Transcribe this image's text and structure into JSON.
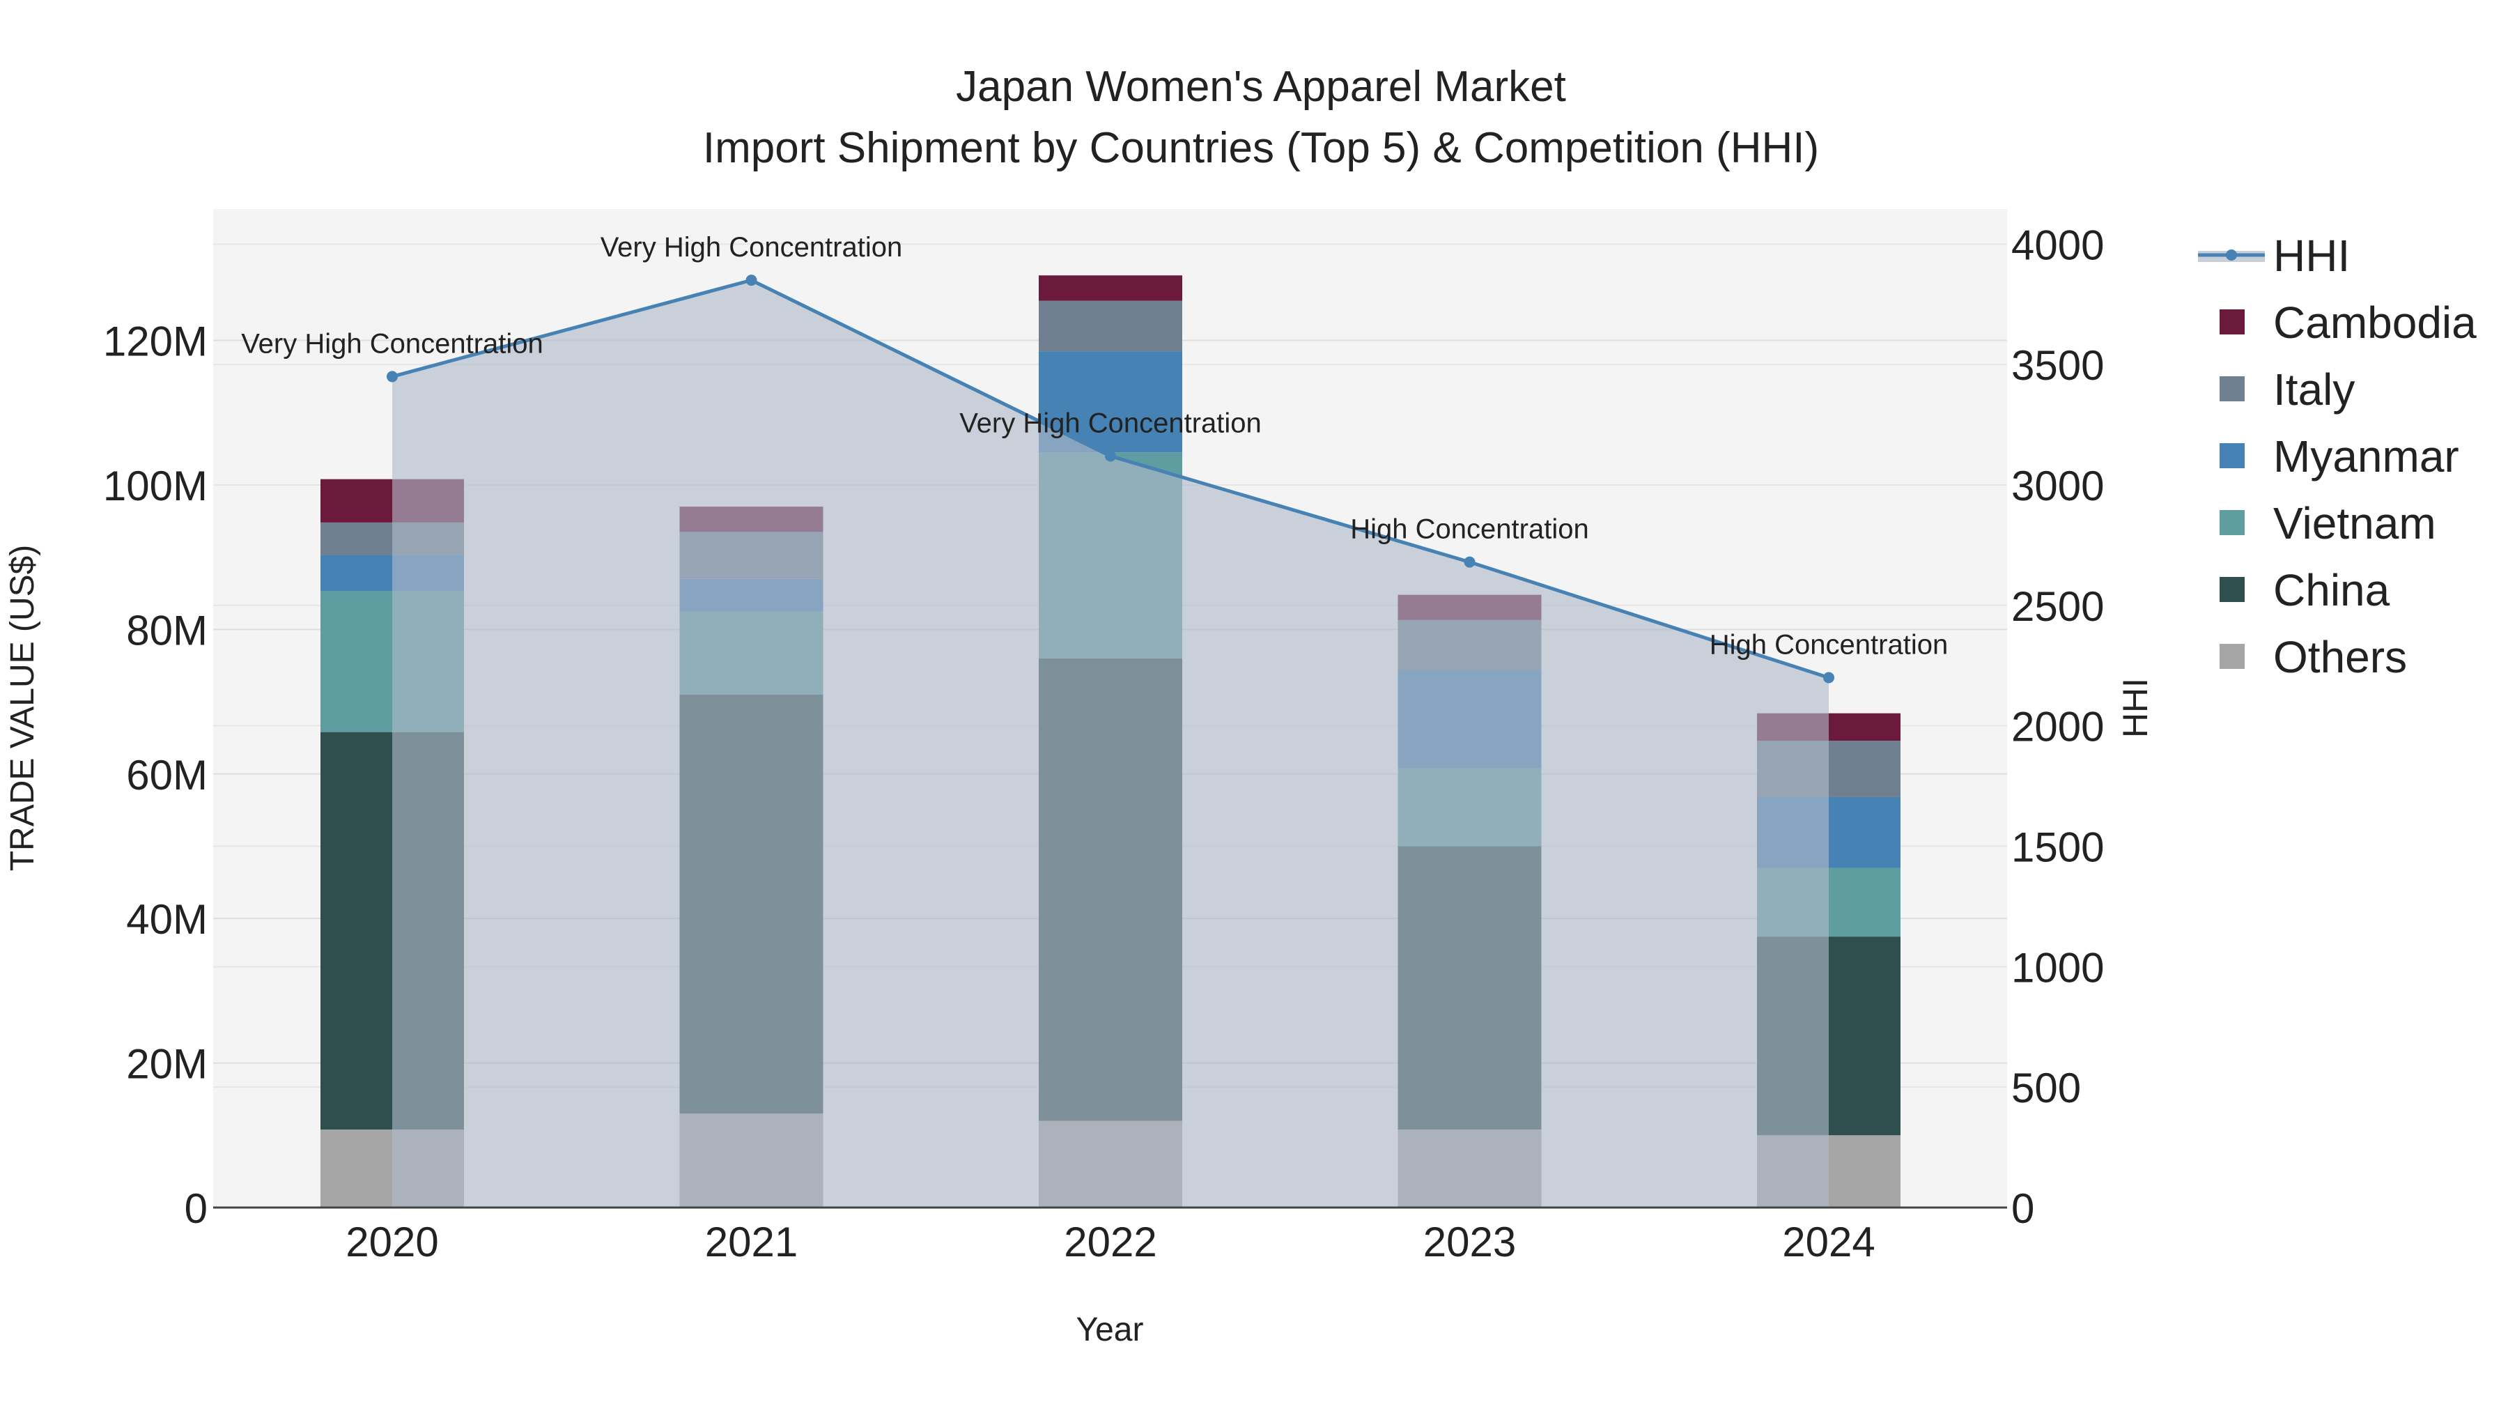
{
  "chart_data": {
    "type": "bar",
    "title": "Japan Women's Apparel Market",
    "subtitle": "Import Shipment by Countries (Top 5) & Competition (HHI)",
    "xlabel": "Year",
    "ylabel": "TRADE VALUE (US$)",
    "y2label": "HHI",
    "categories": [
      "2020",
      "2021",
      "2022",
      "2023",
      "2024"
    ],
    "ylim": [
      0,
      135000000
    ],
    "y_ticks": [
      0,
      20000000,
      40000000,
      60000000,
      80000000,
      100000000,
      120000000
    ],
    "y_tick_labels": [
      "0",
      "20M",
      "40M",
      "60M",
      "80M",
      "100M",
      "120M"
    ],
    "y2lim": [
      0,
      4050
    ],
    "y2_ticks": [
      0,
      500,
      1000,
      1500,
      2000,
      2500,
      3000,
      3500,
      4000
    ],
    "y2_tick_labels": [
      "0",
      "500",
      "1000",
      "1500",
      "2000",
      "2500",
      "3000",
      "3500",
      "4000"
    ],
    "grid": true,
    "legend_position": "right",
    "stacked": true,
    "series": [
      {
        "name": "Others",
        "color": "#a6a6a6",
        "values": [
          10800000,
          13000000,
          12000000,
          10800000,
          10000000
        ]
      },
      {
        "name": "China",
        "color": "#2f4f4f",
        "values": [
          55000000,
          58000000,
          64000000,
          39200000,
          27500000
        ]
      },
      {
        "name": "Vietnam",
        "color": "#5f9ea0",
        "values": [
          19500000,
          11500000,
          28500000,
          10800000,
          9500000
        ]
      },
      {
        "name": "Myanmar",
        "color": "#4682b4",
        "values": [
          5000000,
          4500000,
          14000000,
          13500000,
          9800000
        ]
      },
      {
        "name": "Italy",
        "color": "#708090",
        "values": [
          4500000,
          6500000,
          7000000,
          7000000,
          7800000
        ]
      },
      {
        "name": "Cambodia",
        "color": "#6b1a3c",
        "values": [
          6000000,
          3500000,
          3500000,
          3500000,
          3800000
        ]
      }
    ],
    "hhi": {
      "name": "HHI",
      "color": "#4682b4",
      "values": [
        3450,
        3850,
        3120,
        2680,
        2200
      ],
      "labels": [
        "Very High Concentration",
        "Very High Concentration",
        "Very High Concentration",
        "High Concentration",
        "High Concentration"
      ]
    },
    "legend_order": [
      "HHI",
      "Cambodia",
      "Italy",
      "Myanmar",
      "Vietnam",
      "China",
      "Others"
    ]
  }
}
